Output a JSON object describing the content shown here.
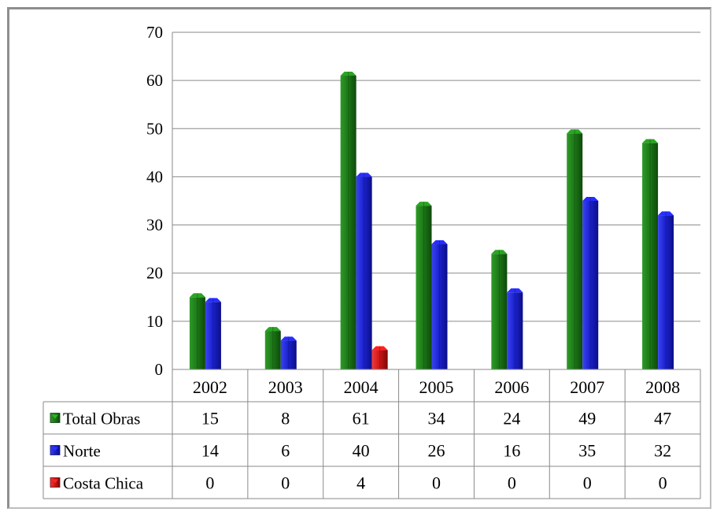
{
  "chart_data": {
    "type": "bar",
    "categories": [
      "2002",
      "2003",
      "2004",
      "2005",
      "2006",
      "2007",
      "2008"
    ],
    "series": [
      {
        "name": "Total Obras",
        "values": [
          15,
          8,
          61,
          34,
          24,
          49,
          47
        ],
        "color": "#1f7a1a"
      },
      {
        "name": "Norte",
        "values": [
          14,
          6,
          40,
          26,
          16,
          35,
          32
        ],
        "color": "#1c22d0"
      },
      {
        "name": "Costa Chica",
        "values": [
          0,
          0,
          4,
          0,
          0,
          0,
          0
        ],
        "color": "#d01818"
      }
    ],
    "ylim": [
      0,
      70
    ],
    "yticks": [
      "0",
      "10",
      "20",
      "30",
      "40",
      "50",
      "60",
      "70"
    ],
    "grid": true,
    "data_table": true,
    "legend": "in-table"
  }
}
